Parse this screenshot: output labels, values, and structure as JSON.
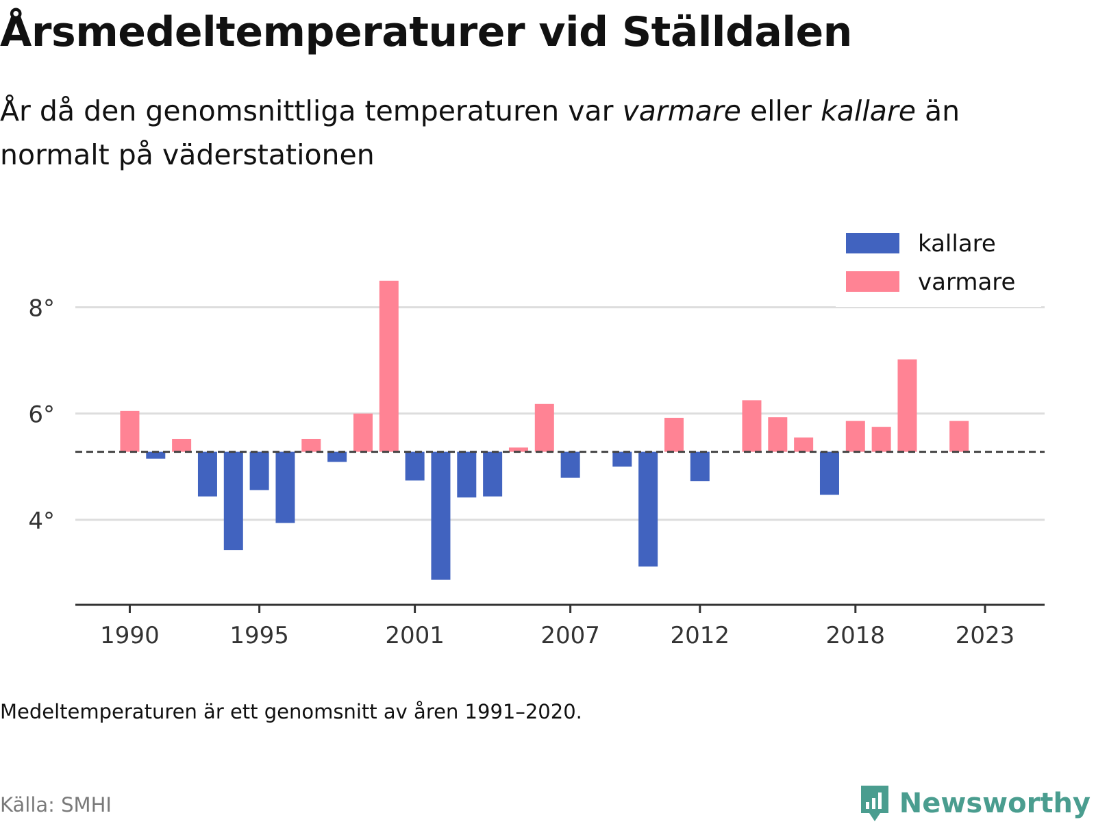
{
  "title": "Årsmedeltemperaturer vid Ställdalen",
  "subtitle": {
    "part1": "År då den genomsnittliga temperaturen var ",
    "warm_word": "varmare",
    "part2": " eller ",
    "cold_word": "kallare",
    "part3": " än normalt på väderstationen"
  },
  "footnote": "Medeltemperaturen är ett genomsnitt av åren 1991–2020.",
  "source": "Källa: SMHI",
  "logo_text": "Newsworthy",
  "colors": {
    "cold": "#4163bf",
    "warm": "#ff8394",
    "grid": "#dddddd",
    "axis": "#333333",
    "baseline": "#444444",
    "logo": "#4a9d8f"
  },
  "chart_data": {
    "type": "bar",
    "baseline": 5.28,
    "legend": [
      {
        "name": "kallare",
        "color": "#4163bf"
      },
      {
        "name": "varmare",
        "color": "#ff8394"
      }
    ],
    "legend_position": "top-right",
    "grid": true,
    "ylim": [
      2.4,
      9.4
    ],
    "yticks": [
      4,
      6,
      8
    ],
    "ytick_labels": [
      "4°",
      "6°",
      "8°"
    ],
    "xticks": [
      1990,
      1995,
      2001,
      2007,
      2012,
      2018,
      2023
    ],
    "xtick_labels": [
      "1990",
      "1995",
      "2001",
      "2007",
      "2012",
      "2018",
      "2023"
    ],
    "xlim": [
      1987.9,
      2025.3
    ],
    "x": [
      1990,
      1991,
      1992,
      1993,
      1994,
      1995,
      1996,
      1997,
      1998,
      1999,
      2000,
      2001,
      2002,
      2003,
      2004,
      2005,
      2006,
      2007,
      2008,
      2009,
      2010,
      2011,
      2012,
      2013,
      2014,
      2015,
      2016,
      2017,
      2018,
      2019,
      2020,
      2021,
      2022
    ],
    "values": [
      6.05,
      5.15,
      5.52,
      4.44,
      3.43,
      4.56,
      3.94,
      5.52,
      5.09,
      6.0,
      8.5,
      4.74,
      2.87,
      4.42,
      4.44,
      5.36,
      6.18,
      4.79,
      null,
      5.0,
      3.12,
      5.92,
      4.73,
      null,
      6.25,
      5.93,
      5.55,
      4.47,
      5.86,
      5.75,
      7.02,
      null,
      5.86
    ]
  }
}
